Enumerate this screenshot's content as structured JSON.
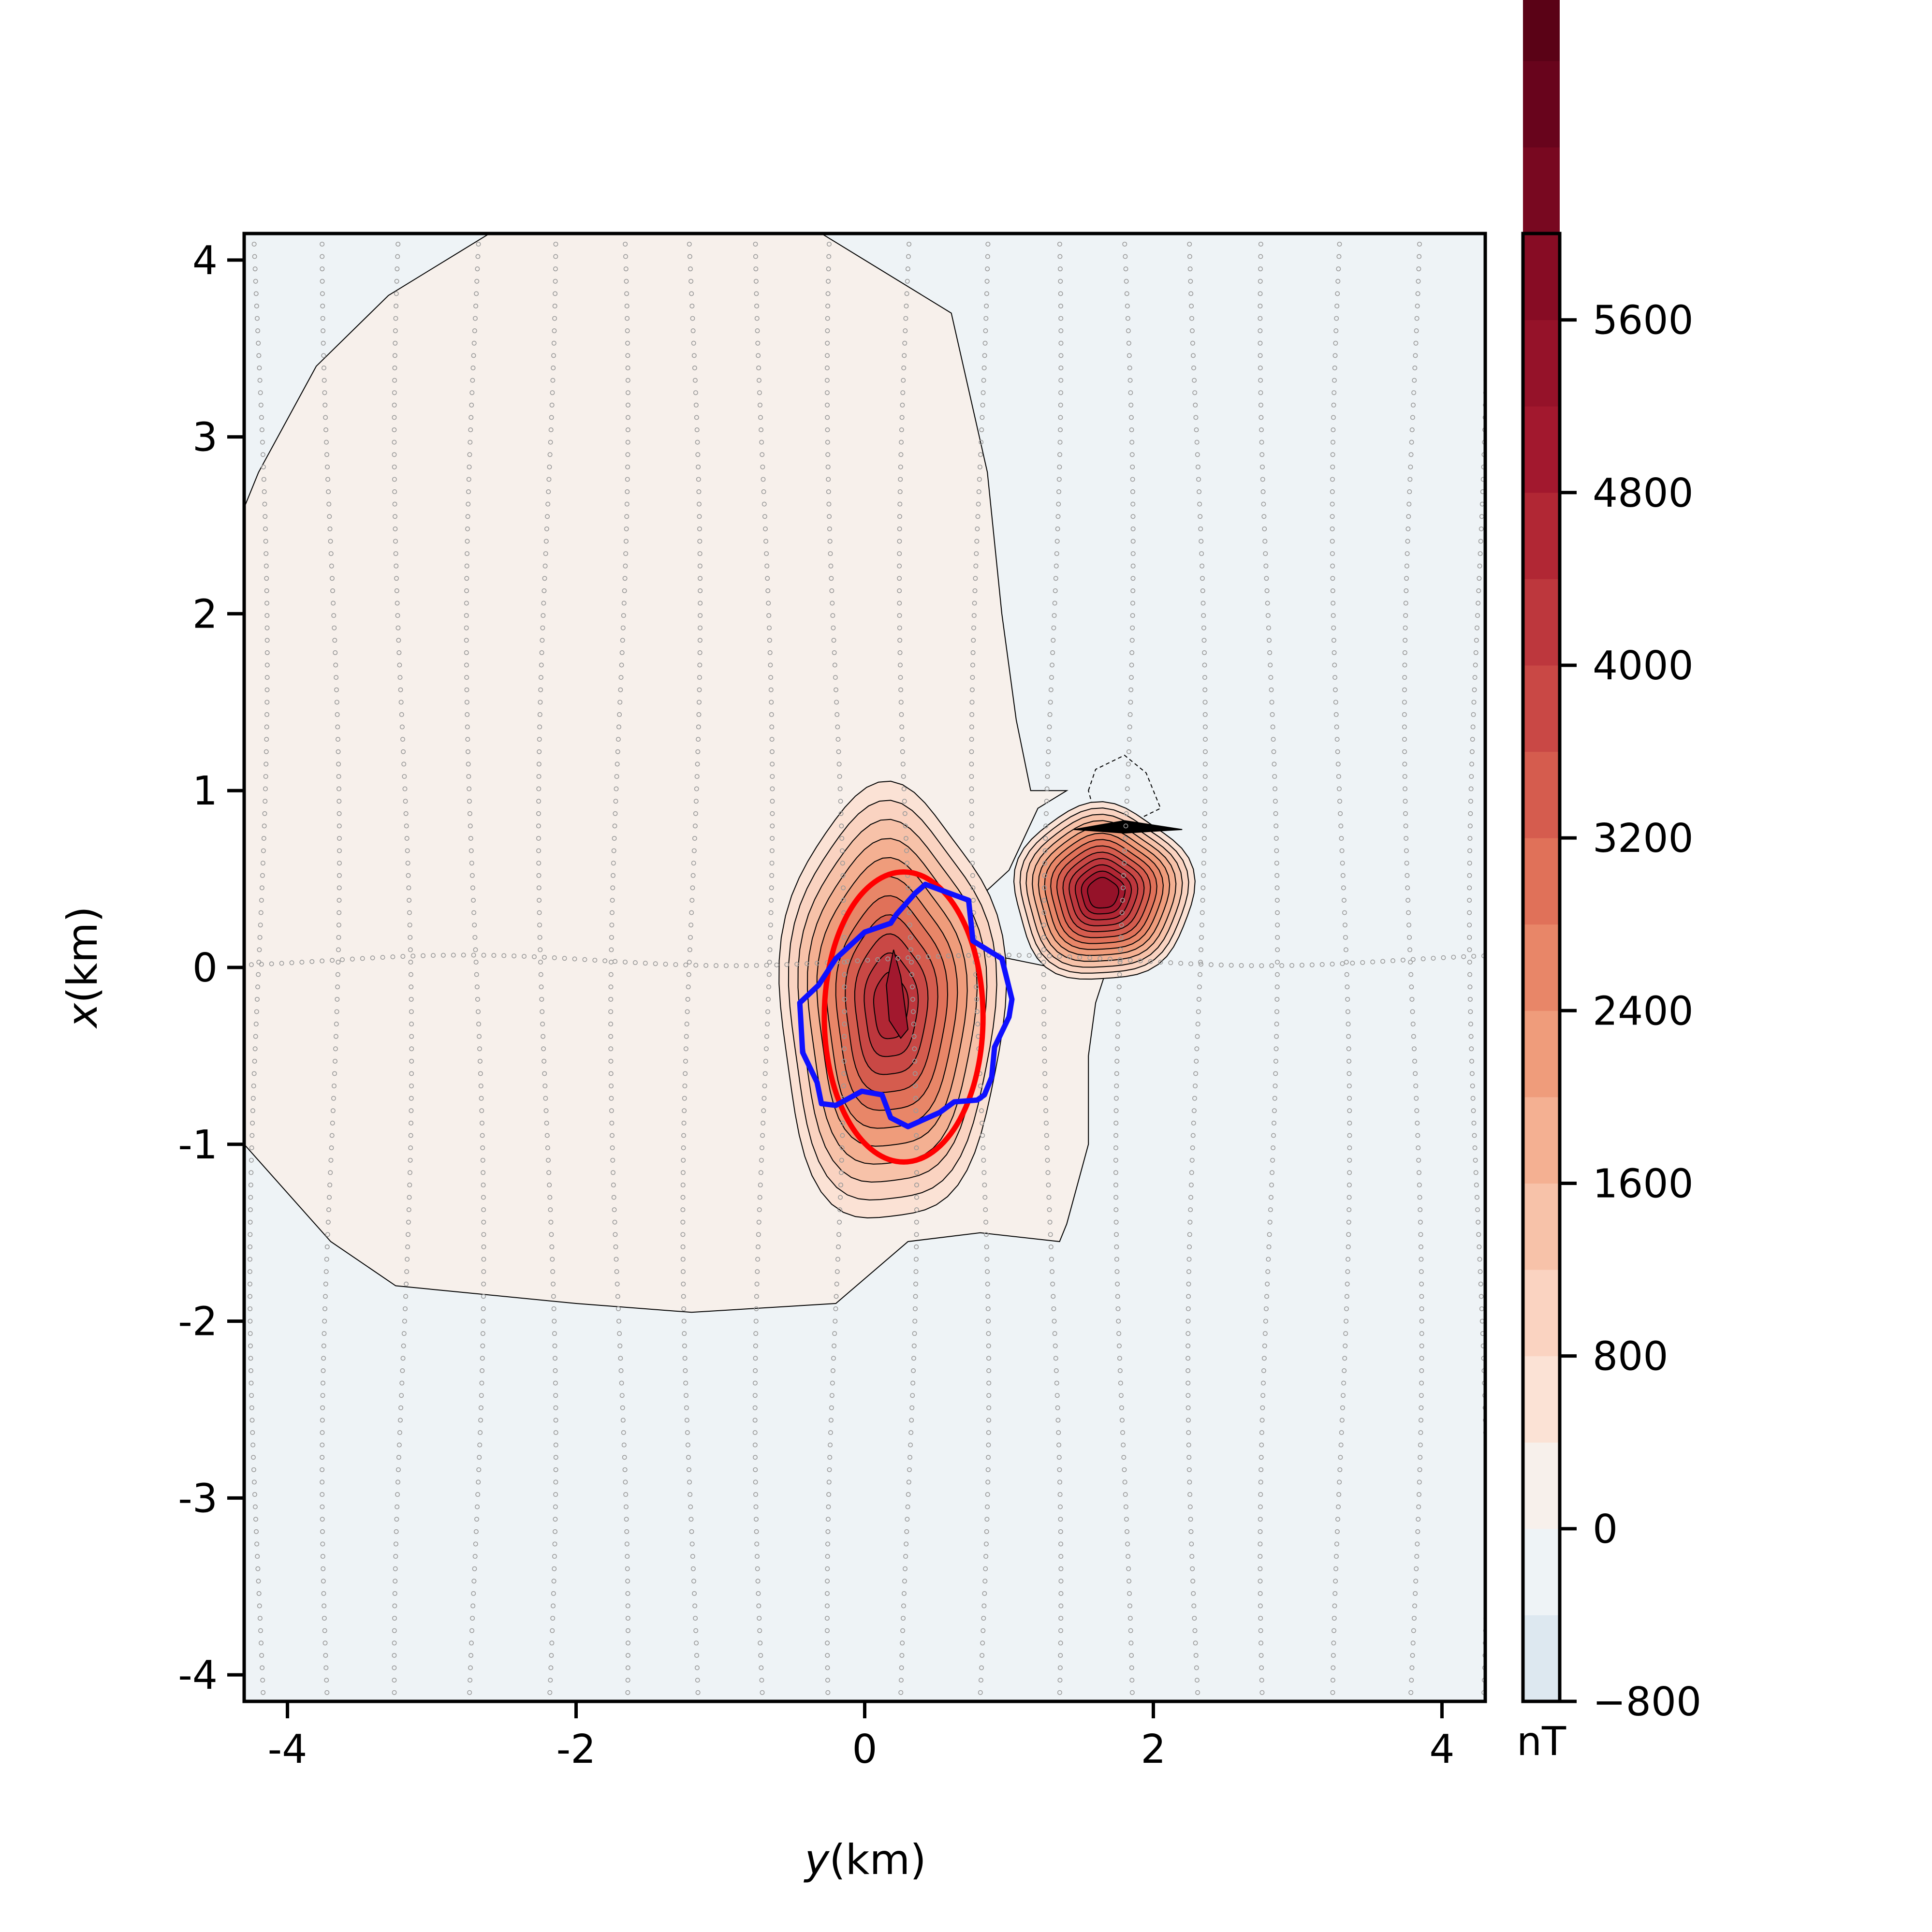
{
  "chart_data": {
    "type": "heatmap",
    "subtype": "filled contour map",
    "xlabel_italic": "y",
    "xlabel_unit": "(km)",
    "ylabel_italic": "x",
    "ylabel_unit": "(km)",
    "x_axis": {
      "range": [
        -4.3,
        4.3
      ],
      "ticks": [
        -4,
        -2,
        0,
        2,
        4
      ],
      "tick_labels": [
        "-4",
        "-2",
        "0",
        "2",
        "4"
      ]
    },
    "y_axis": {
      "range": [
        -4.15,
        4.15
      ],
      "ticks": [
        -4,
        -3,
        -2,
        -1,
        0,
        1,
        2,
        3,
        4
      ],
      "tick_labels": [
        "-4",
        "-3",
        "-2",
        "-1",
        "0",
        "1",
        "2",
        "3",
        "4"
      ]
    },
    "colorbar": {
      "label": "nT",
      "range": [
        -800,
        6000
      ],
      "level_step": 400,
      "ticks": [
        -800,
        0,
        800,
        1600,
        2400,
        3200,
        4000,
        4800,
        5600
      ],
      "tick_labels": [
        "−800",
        "0",
        "800",
        "1600",
        "2400",
        "3200",
        "4000",
        "4800",
        "5600"
      ],
      "colormap": [
        "#dde8f0",
        "#eef3f6",
        "#f7f0eb",
        "#fbe2d5",
        "#fad3c1",
        "#f7c2a9",
        "#f4b092",
        "#ef9c7b",
        "#e88668",
        "#e07159",
        "#d55c4e",
        "#c94845",
        "#bd373d",
        "#b12734",
        "#a2182e",
        "#951229",
        "#870c24",
        "#780820",
        "#68041c",
        "#5a0216"
      ]
    },
    "annotations": {
      "red_outline": {
        "color": "#ff0000",
        "shape": "ellipse",
        "center_yx": [
          0.27,
          -0.28
        ],
        "semi_axes_km": [
          0.55,
          0.82
        ]
      },
      "blue_outline": {
        "color": "#1010ff",
        "points_yx": [
          [
            0.42,
            0.47
          ],
          [
            0.72,
            0.38
          ],
          [
            0.75,
            0.15
          ],
          [
            0.95,
            0.05
          ],
          [
            1.02,
            -0.18
          ],
          [
            1.0,
            -0.28
          ],
          [
            0.9,
            -0.45
          ],
          [
            0.88,
            -0.62
          ],
          [
            0.83,
            -0.72
          ],
          [
            0.78,
            -0.75
          ],
          [
            0.62,
            -0.76
          ],
          [
            0.52,
            -0.82
          ],
          [
            0.3,
            -0.9
          ],
          [
            0.18,
            -0.85
          ],
          [
            0.12,
            -0.72
          ],
          [
            -0.02,
            -0.7
          ],
          [
            -0.2,
            -0.78
          ],
          [
            -0.3,
            -0.77
          ],
          [
            -0.33,
            -0.65
          ],
          [
            -0.43,
            -0.48
          ],
          [
            -0.45,
            -0.2
          ],
          [
            -0.32,
            -0.1
          ],
          [
            -0.2,
            0.05
          ],
          [
            0.0,
            0.2
          ],
          [
            0.18,
            0.25
          ],
          [
            0.22,
            0.3
          ],
          [
            0.35,
            0.42
          ]
        ]
      }
    },
    "survey_points": "grey dotted survey lines (north-south lines every ~0.5 km and one east-west line near x = 0)",
    "grid": false,
    "legend": "none"
  }
}
